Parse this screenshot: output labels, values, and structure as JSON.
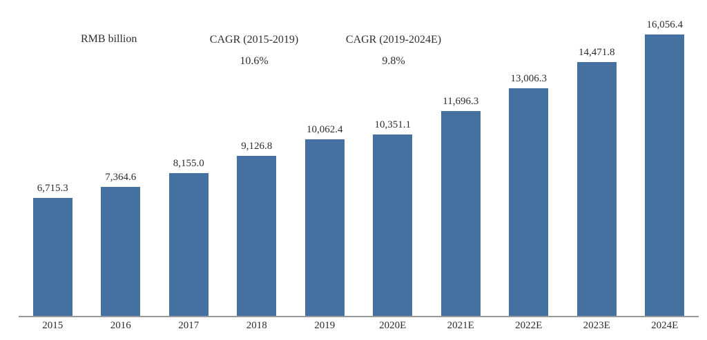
{
  "chart_data": {
    "type": "bar",
    "title": "",
    "unit_label": "RMB billion",
    "annotations": [
      {
        "label": "CAGR (2015-2019)",
        "value": "10.6%"
      },
      {
        "label": "CAGR (2019-2024E)",
        "value": "9.8%"
      }
    ],
    "categories": [
      "2015",
      "2016",
      "2017",
      "2018",
      "2019",
      "2020E",
      "2021E",
      "2022E",
      "2023E",
      "2024E"
    ],
    "values": [
      6715.3,
      7364.6,
      8155.0,
      9126.8,
      10062.4,
      10351.1,
      11696.3,
      13006.3,
      14471.8,
      16056.4
    ],
    "value_labels": [
      "6,715.3",
      "7,364.6",
      "8,155.0",
      "9,126.8",
      "10,062.4",
      "10,351.1",
      "11,696.3",
      "13,006.3",
      "14,471.8",
      "16,056.4"
    ],
    "xlabel": "",
    "ylabel": "",
    "ylim": [
      0,
      16056.4
    ],
    "grid": false,
    "legend_position": "none",
    "bar_color": "#4571a0",
    "axis_color": "#999999",
    "text_color": "#2b2b2b"
  }
}
